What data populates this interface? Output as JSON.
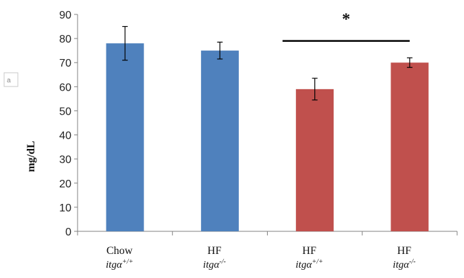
{
  "chart_data": {
    "type": "bar",
    "categories": [
      {
        "line1": "Chow",
        "line2_base": "itgα",
        "line2_sup": "+/+"
      },
      {
        "line1": "HF",
        "line2_base": "itgα",
        "line2_sup": "-/-"
      },
      {
        "line1": "HF",
        "line2_base": "itgα",
        "line2_sup": "+/+"
      },
      {
        "line1": "HF",
        "line2_base": "itgα",
        "line2_sup": "-/-"
      }
    ],
    "values": [
      78,
      75,
      59,
      70
    ],
    "errors": [
      7,
      3.5,
      4.5,
      2
    ],
    "colors": [
      "#4f81bd",
      "#4f81bd",
      "#c0504d",
      "#c0504d"
    ],
    "ylabel": "mg/dL",
    "ylim": [
      0,
      90
    ],
    "yticks": [
      0,
      10,
      20,
      30,
      40,
      50,
      60,
      70,
      80,
      90
    ],
    "grid": false,
    "annotation": {
      "text": "*",
      "from_category": 2,
      "to_category": 3,
      "level": 79
    },
    "side_marker": "a"
  }
}
